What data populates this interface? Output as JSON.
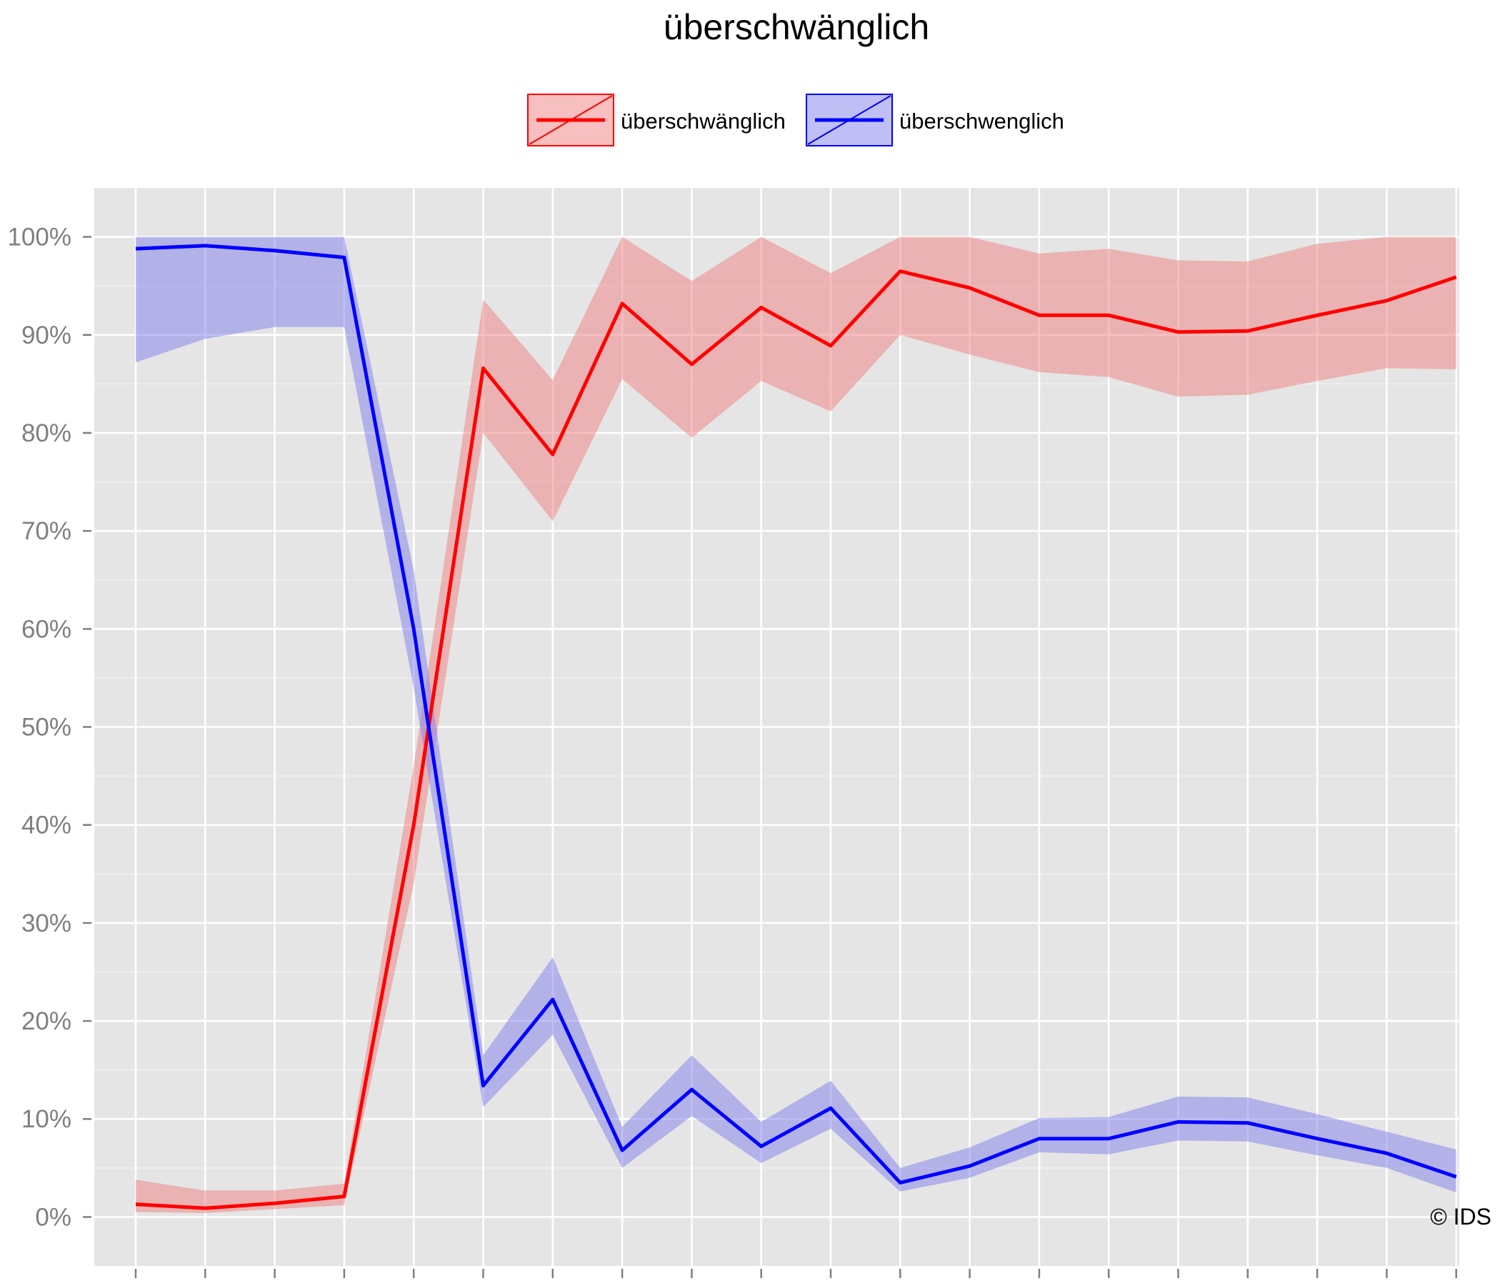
{
  "chart_data": {
    "type": "line",
    "title": "überschwänglich",
    "credit": "© IDS",
    "xlabel": "",
    "ylabel": "",
    "x": [
      1,
      2,
      3,
      4,
      5,
      6,
      7,
      8,
      9,
      10,
      11,
      12,
      13,
      14,
      15,
      16,
      17,
      18,
      19,
      20
    ],
    "y_ticks": [
      "0%",
      "10%",
      "20%",
      "30%",
      "40%",
      "50%",
      "60%",
      "70%",
      "80%",
      "90%",
      "100%"
    ],
    "ylim": [
      -0.05,
      1.05
    ],
    "grid": true,
    "legend_position": "top",
    "series": [
      {
        "name": "überschwänglich",
        "color": "#ff0000",
        "band_color": "#f08080",
        "values": [
          0.013,
          0.009,
          0.014,
          0.021,
          0.4,
          0.866,
          0.778,
          0.932,
          0.87,
          0.928,
          0.889,
          0.965,
          0.948,
          0.92,
          0.92,
          0.903,
          0.904,
          0.92,
          0.935,
          0.959
        ],
        "lower": [
          0.005,
          0.004,
          0.008,
          0.012,
          0.34,
          0.8,
          0.71,
          0.855,
          0.795,
          0.853,
          0.822,
          0.9,
          0.88,
          0.862,
          0.857,
          0.837,
          0.839,
          0.853,
          0.866,
          0.865
        ],
        "upper": [
          0.038,
          0.027,
          0.027,
          0.034,
          0.46,
          0.936,
          0.854,
          1.0,
          0.955,
          1.0,
          0.963,
          1.0,
          1.0,
          0.983,
          0.988,
          0.976,
          0.975,
          0.993,
          1.0,
          1.0
        ]
      },
      {
        "name": "überschwenglich",
        "color": "#0000ff",
        "band_color": "#8080ee",
        "values": [
          0.988,
          0.991,
          0.986,
          0.979,
          0.6,
          0.134,
          0.222,
          0.068,
          0.13,
          0.072,
          0.111,
          0.035,
          0.052,
          0.08,
          0.08,
          0.097,
          0.096,
          0.08,
          0.065,
          0.041
        ],
        "lower": [
          0.872,
          0.896,
          0.908,
          0.908,
          0.54,
          0.112,
          0.186,
          0.05,
          0.103,
          0.055,
          0.09,
          0.026,
          0.04,
          0.066,
          0.064,
          0.078,
          0.077,
          0.063,
          0.05,
          0.025
        ],
        "upper": [
          1.0,
          1.0,
          1.0,
          1.0,
          0.66,
          0.165,
          0.265,
          0.092,
          0.165,
          0.097,
          0.139,
          0.05,
          0.071,
          0.101,
          0.102,
          0.123,
          0.122,
          0.105,
          0.087,
          0.069
        ]
      }
    ]
  }
}
